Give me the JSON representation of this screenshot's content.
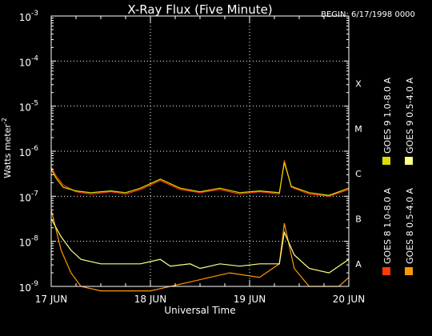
{
  "chart_data": {
    "type": "line",
    "title": "X-Ray Flux (Five Minute)",
    "begin_label": "BEGIN: 6/17/1998 0000",
    "xlabel": "Universal Time",
    "ylabel": "Watts meter^-2",
    "ylabel_main": "Watts meter",
    "ylabel_sup": "-2",
    "x_unit": "days since 1998-06-17 00:00 UT",
    "xlim": [
      0,
      3
    ],
    "x_ticks": [
      {
        "value": 0,
        "label": "17 JUN"
      },
      {
        "value": 1,
        "label": "18 JUN"
      },
      {
        "value": 2,
        "label": "19 JUN"
      },
      {
        "value": 3,
        "label": "20 JUN"
      }
    ],
    "y_scale": "log",
    "ylim_exponent": [
      -9,
      -3
    ],
    "y_ticks": [
      {
        "exp": -9,
        "label": "10",
        "sup": "-9"
      },
      {
        "exp": -8,
        "label": "10",
        "sup": "-8"
      },
      {
        "exp": -7,
        "label": "10",
        "sup": "-7"
      },
      {
        "exp": -6,
        "label": "10",
        "sup": "-6"
      },
      {
        "exp": -5,
        "label": "10",
        "sup": "-5"
      },
      {
        "exp": -4,
        "label": "10",
        "sup": "-4"
      },
      {
        "exp": -3,
        "label": "10",
        "sup": "-3"
      }
    ],
    "flare_classes": [
      {
        "exp": -8,
        "label": "A"
      },
      {
        "exp": -7,
        "label": "B"
      },
      {
        "exp": -6,
        "label": "C"
      },
      {
        "exp": -5,
        "label": "M"
      },
      {
        "exp": -4,
        "label": "X"
      }
    ],
    "grid": {
      "horizontal_exponents": [
        -8,
        -7,
        -6,
        -5,
        -4
      ],
      "vertical_days": [
        1,
        2
      ],
      "style": "dotted"
    },
    "legend_position": "right, vertical",
    "series": [
      {
        "name": "GOES 8  1.0-8.0 A",
        "color": "#ff3c00",
        "points": [
          [
            0,
            -6.35
          ],
          [
            0.05,
            -6.55
          ],
          [
            0.12,
            -6.75
          ],
          [
            0.25,
            -6.9
          ],
          [
            0.4,
            -6.95
          ],
          [
            0.6,
            -6.9
          ],
          [
            0.75,
            -6.95
          ],
          [
            0.9,
            -6.85
          ],
          [
            1.1,
            -6.65
          ],
          [
            1.3,
            -6.85
          ],
          [
            1.5,
            -6.92
          ],
          [
            1.7,
            -6.85
          ],
          [
            1.9,
            -6.95
          ],
          [
            2.1,
            -6.9
          ],
          [
            2.3,
            -6.95
          ],
          [
            2.35,
            -6.2
          ],
          [
            2.42,
            -6.8
          ],
          [
            2.6,
            -6.95
          ],
          [
            2.8,
            -7.0
          ],
          [
            3.0,
            -6.85
          ]
        ]
      },
      {
        "name": "GOES 8  0.5-4.0 A",
        "color": "#ff9900",
        "points": [
          [
            0,
            -7.3
          ],
          [
            0.1,
            -8.2
          ],
          [
            0.2,
            -8.7
          ],
          [
            0.3,
            -9.0
          ],
          [
            0.5,
            -9.1
          ],
          [
            1.0,
            -9.1
          ],
          [
            1.4,
            -8.9
          ],
          [
            1.8,
            -8.7
          ],
          [
            2.1,
            -8.8
          ],
          [
            2.3,
            -8.5
          ],
          [
            2.35,
            -7.6
          ],
          [
            2.45,
            -8.6
          ],
          [
            2.6,
            -9.0
          ],
          [
            2.9,
            -9.0
          ],
          [
            3.0,
            -8.8
          ]
        ]
      },
      {
        "name": "GOES 9  1.0-8.0 A",
        "color": "#dddd00",
        "points": [
          [
            0,
            -6.4
          ],
          [
            0.05,
            -6.6
          ],
          [
            0.12,
            -6.8
          ],
          [
            0.25,
            -6.88
          ],
          [
            0.4,
            -6.92
          ],
          [
            0.6,
            -6.88
          ],
          [
            0.75,
            -6.92
          ],
          [
            0.9,
            -6.82
          ],
          [
            1.1,
            -6.62
          ],
          [
            1.3,
            -6.82
          ],
          [
            1.5,
            -6.9
          ],
          [
            1.7,
            -6.82
          ],
          [
            1.9,
            -6.92
          ],
          [
            2.1,
            -6.88
          ],
          [
            2.3,
            -6.92
          ],
          [
            2.35,
            -6.25
          ],
          [
            2.42,
            -6.78
          ],
          [
            2.6,
            -6.92
          ],
          [
            2.8,
            -6.98
          ],
          [
            3.0,
            -6.82
          ]
        ]
      },
      {
        "name": "GOES 9  0.5-4.0 A",
        "color": "#ffff88",
        "points": [
          [
            0,
            -7.5
          ],
          [
            0.1,
            -7.9
          ],
          [
            0.2,
            -8.2
          ],
          [
            0.3,
            -8.4
          ],
          [
            0.5,
            -8.5
          ],
          [
            0.7,
            -8.5
          ],
          [
            0.9,
            -8.5
          ],
          [
            1.0,
            -8.45
          ],
          [
            1.1,
            -8.4
          ],
          [
            1.2,
            -8.55
          ],
          [
            1.4,
            -8.5
          ],
          [
            1.5,
            -8.6
          ],
          [
            1.7,
            -8.5
          ],
          [
            1.9,
            -8.55
          ],
          [
            2.1,
            -8.5
          ],
          [
            2.3,
            -8.5
          ],
          [
            2.35,
            -7.8
          ],
          [
            2.45,
            -8.3
          ],
          [
            2.6,
            -8.6
          ],
          [
            2.8,
            -8.7
          ],
          [
            3.0,
            -8.4
          ]
        ]
      }
    ]
  }
}
